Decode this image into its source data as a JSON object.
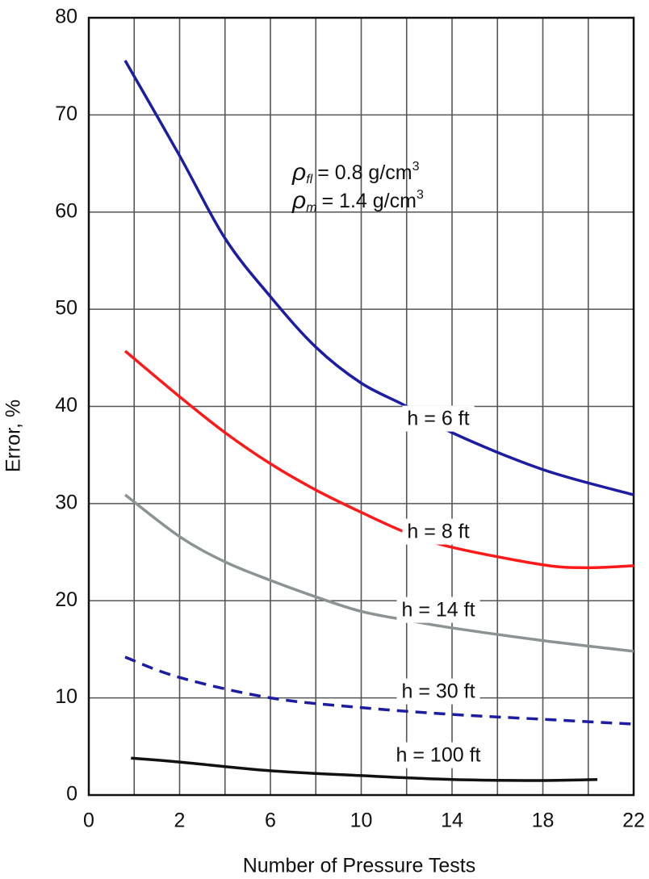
{
  "chart_data": {
    "type": "line",
    "xlabel": "Number of Pressure Tests",
    "ylabel": "Error, %",
    "xlim": [
      0,
      22
    ],
    "ylim": [
      0,
      80
    ],
    "xticks": [
      0,
      2,
      6,
      10,
      14,
      18,
      22
    ],
    "xminor": [
      1,
      4,
      8,
      12,
      16,
      20
    ],
    "yticks": [
      0,
      10,
      20,
      30,
      40,
      50,
      60,
      70,
      80
    ],
    "grid": true,
    "annotations": [
      {
        "symbol": "ρ",
        "sub": "fl",
        "text": "= 0.8 g/cm",
        "sup": "3"
      },
      {
        "symbol": "ρ",
        "sub": "m",
        "text": "= 1.4 g/cm",
        "sup": "3"
      }
    ],
    "series": [
      {
        "name": "h = 6 ft",
        "color": "#1c1ca4",
        "dash": false,
        "x": [
          0.8,
          2,
          4,
          6,
          8,
          10,
          12,
          14,
          18,
          22
        ],
        "values": [
          75.6,
          65.8,
          57.3,
          51.3,
          46.1,
          42.4,
          40,
          37.3,
          33.5,
          30.9
        ]
      },
      {
        "name": "h = 8 ft",
        "color": "#ff1a1a",
        "dash": false,
        "x": [
          0.8,
          2,
          4,
          6,
          8,
          10,
          12,
          14,
          18,
          20,
          22
        ],
        "values": [
          45.7,
          41,
          37.3,
          34.1,
          31.4,
          29.1,
          27,
          25.5,
          23.7,
          23.4,
          23.6
        ]
      },
      {
        "name": "h = 14 ft",
        "color": "#8c9394",
        "dash": false,
        "x": [
          0.8,
          2,
          4,
          6,
          8,
          10,
          12,
          14,
          18,
          22
        ],
        "values": [
          30.9,
          26.6,
          24,
          22.1,
          20.4,
          18.9,
          18,
          17.2,
          15.9,
          14.8
        ]
      },
      {
        "name": "h = 30 ft",
        "color": "#1c1ca4",
        "dash": true,
        "x": [
          0.8,
          2,
          6,
          10,
          14,
          18,
          22
        ],
        "values": [
          14.2,
          12.1,
          10,
          9,
          8.3,
          7.8,
          7.3
        ]
      },
      {
        "name": "h = 100 ft",
        "color": "#111111",
        "dash": false,
        "x": [
          0.93,
          2,
          6,
          10,
          14,
          18,
          20.4
        ],
        "values": [
          3.8,
          3.4,
          2.5,
          2,
          1.6,
          1.5,
          1.6
        ]
      }
    ]
  }
}
